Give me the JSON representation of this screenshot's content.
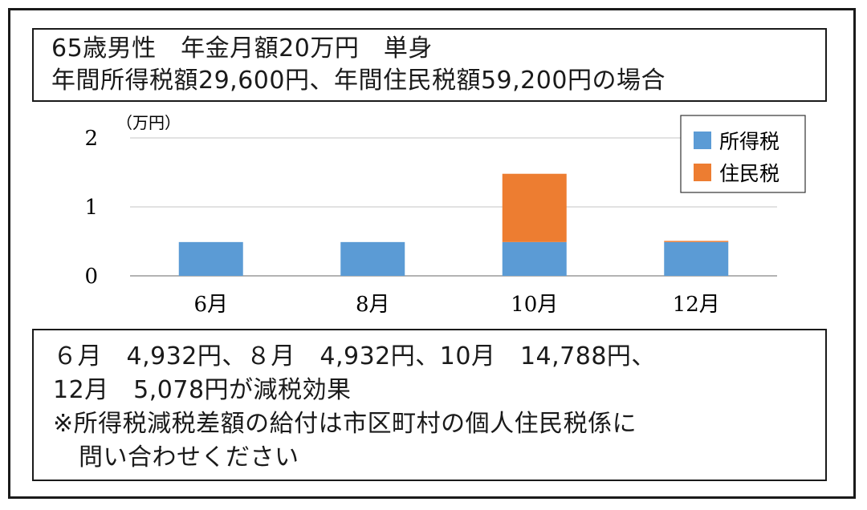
{
  "header": {
    "line1": "65歳男性　年金月額20万円　単身",
    "line2": "年間所得税額29,600円、年間住民税額59,200円の場合"
  },
  "notes": {
    "line1": "６月　4,932円、８月　4,932円、10月　14,788円、",
    "line2": "12月　5,078円が減税効果",
    "line3": "※所得税減税差額の給付は市区町村の個人住民税係に",
    "line4": "問い合わせください"
  },
  "chart_data": {
    "type": "bar",
    "stacked": true,
    "unit_label": "（万円）",
    "categories": [
      "6月",
      "8月",
      "10月",
      "12月"
    ],
    "series": [
      {
        "name": "所得税",
        "color": "#5b9bd5",
        "values": [
          0.49,
          0.49,
          0.49,
          0.49
        ]
      },
      {
        "name": "住民税",
        "color": "#ed7d31",
        "values": [
          0,
          0,
          0.99,
          0.017
        ]
      }
    ],
    "ylim": [
      0,
      2
    ],
    "yticks": [
      "0",
      "1",
      "2"
    ],
    "grid": true,
    "legend_position": "top-right"
  }
}
